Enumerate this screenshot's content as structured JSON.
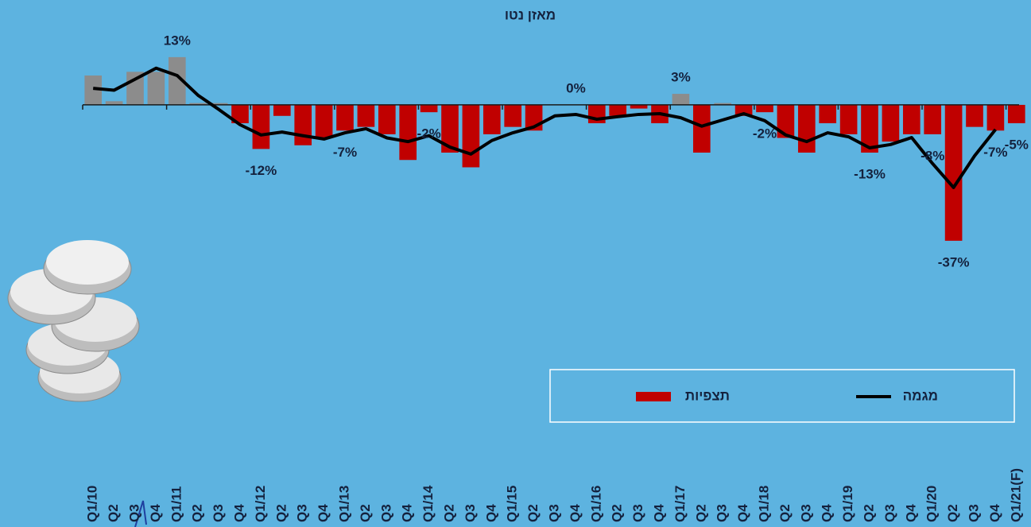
{
  "chart_data": {
    "type": "bar_line",
    "title": "מאזן נטו",
    "categories": [
      "Q1/10",
      "Q2",
      "Q3",
      "Q4",
      "Q1/11",
      "Q2",
      "Q3",
      "Q4",
      "Q1/12",
      "Q2",
      "Q3",
      "Q4",
      "Q1/13",
      "Q2",
      "Q3",
      "Q4",
      "Q1/14",
      "Q2",
      "Q3",
      "Q4",
      "Q1/15",
      "Q2",
      "Q3",
      "Q4",
      "Q1/16",
      "Q2",
      "Q3",
      "Q4",
      "Q1/17",
      "Q2",
      "Q3",
      "Q4",
      "Q1/18",
      "Q2",
      "Q3",
      "Q4",
      "Q1/19",
      "Q2",
      "Q3",
      "Q4",
      "Q1/20",
      "Q2",
      "Q3",
      "Q4",
      "Q1/21(F)"
    ],
    "ylim": [
      -42,
      16
    ],
    "series": [
      {
        "name": "תצפיות",
        "kind": "bar",
        "color": "#c00000",
        "positive_color": "#8c8c8c",
        "values": [
          8,
          1,
          9,
          9,
          13,
          0.5,
          0.5,
          -5,
          -12,
          -3,
          -11,
          -9,
          -7,
          -6,
          -8,
          -15,
          -2,
          -13,
          -17,
          -8,
          -6,
          -7,
          0,
          0,
          -5,
          -3,
          -1,
          -5,
          3,
          -13,
          0.5,
          -3,
          -2,
          -9,
          -13,
          -5,
          -8,
          -13,
          -10,
          -8,
          -8,
          -37,
          -6,
          -7,
          -5
        ],
        "value_labels": [
          null,
          null,
          null,
          null,
          "13%",
          null,
          null,
          null,
          "-12%",
          null,
          null,
          null,
          "-7%",
          null,
          null,
          null,
          "-2%",
          null,
          null,
          null,
          null,
          null,
          null,
          "0%",
          null,
          null,
          null,
          null,
          "3%",
          null,
          null,
          null,
          "-2%",
          null,
          null,
          null,
          null,
          "-13%",
          null,
          null,
          "-8%",
          "-37%",
          null,
          "-7%",
          "-5%"
        ]
      },
      {
        "name": "מגמה",
        "kind": "line",
        "color": "#000000",
        "values": [
          4.5,
          4,
          7,
          10,
          8,
          2.6,
          -1.3,
          -5.4,
          -8.2,
          -7.4,
          -8.4,
          -9.3,
          -7.6,
          -6.5,
          -9,
          -10,
          -8.4,
          -11.5,
          -13.4,
          -9.7,
          -7.6,
          -6,
          -3,
          -2.6,
          -3.9,
          -3.2,
          -2.6,
          -2.4,
          -3.5,
          -5.8,
          -4.1,
          -2.4,
          -4.3,
          -8.2,
          -10,
          -7.6,
          -8.7,
          -11.7,
          -10.8,
          -8.9,
          -16,
          -22.5,
          -13.9,
          -6.7,
          null
        ]
      }
    ]
  }
}
